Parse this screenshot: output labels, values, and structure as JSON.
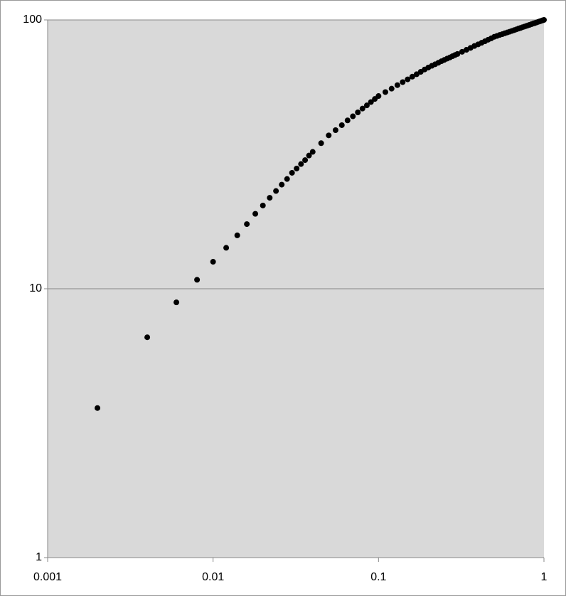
{
  "chart_data": {
    "type": "scatter",
    "x": [
      0.002,
      0.004,
      0.006,
      0.008,
      0.01,
      0.012,
      0.014,
      0.016,
      0.018,
      0.02,
      0.022,
      0.024,
      0.026,
      0.028,
      0.03,
      0.032,
      0.034,
      0.036,
      0.038,
      0.04,
      0.045,
      0.05,
      0.055,
      0.06,
      0.065,
      0.07,
      0.075,
      0.08,
      0.085,
      0.09,
      0.095,
      0.1,
      0.11,
      0.12,
      0.13,
      0.14,
      0.15,
      0.16,
      0.17,
      0.18,
      0.19,
      0.2,
      0.21,
      0.22,
      0.23,
      0.24,
      0.25,
      0.26,
      0.27,
      0.28,
      0.29,
      0.3,
      0.32,
      0.34,
      0.36,
      0.38,
      0.4,
      0.42,
      0.44,
      0.46,
      0.48,
      0.5,
      0.52,
      0.54,
      0.56,
      0.58,
      0.6,
      0.62,
      0.64,
      0.66,
      0.68,
      0.7,
      0.72,
      0.74,
      0.76,
      0.78,
      0.8,
      0.82,
      0.84,
      0.86,
      0.88,
      0.9,
      0.92,
      0.94,
      0.96,
      0.98,
      1
    ],
    "values": [
      3.6,
      6.6,
      8.9,
      10.8,
      12.6,
      14.2,
      15.8,
      17.4,
      19.0,
      20.4,
      21.8,
      23.1,
      24.4,
      25.6,
      27.0,
      28.0,
      29.1,
      30.1,
      31.3,
      32.3,
      34.8,
      37.2,
      38.9,
      40.6,
      42.3,
      43.8,
      45.3,
      46.8,
      48.1,
      49.5,
      50.8,
      52.1,
      53.9,
      55.5,
      57.2,
      58.7,
      60.1,
      61.5,
      62.8,
      64.1,
      65.4,
      66.5,
      67.5,
      68.4,
      69.3,
      70.2,
      71.0,
      71.8,
      72.5,
      73.3,
      74.0,
      74.7,
      76.1,
      77.4,
      78.7,
      80.0,
      81.1,
      82.2,
      83.3,
      84.4,
      85.4,
      86.5,
      87.2,
      87.9,
      88.5,
      89.2,
      89.8,
      90.4,
      91.0,
      91.6,
      92.2,
      92.8,
      93.3,
      93.9,
      94.4,
      94.9,
      95.4,
      95.9,
      96.4,
      96.9,
      97.3,
      97.8,
      98.3,
      98.7,
      99.2,
      99.6,
      100
    ],
    "color": "#000000",
    "xscale": "log",
    "yscale": "log",
    "xlim": [
      0.001,
      1
    ],
    "ylim": [
      1,
      100
    ],
    "xticks": [
      0.001,
      0.01,
      0.1,
      1
    ],
    "yticks": [
      1,
      10,
      100
    ],
    "grid": true
  }
}
